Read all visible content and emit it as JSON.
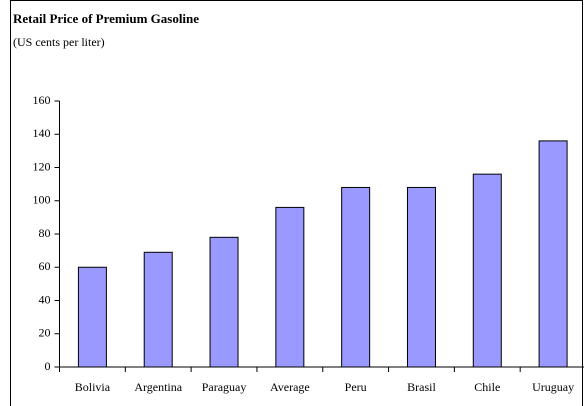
{
  "chart_data": {
    "type": "bar",
    "title": "Retail Price of Premium Gasoline",
    "subtitle": "(US cents per liter)",
    "categories": [
      "Bolivia",
      "Argentina",
      "Paraguay",
      "Average",
      "Peru",
      "Brasil",
      "Chile",
      "Uruguay"
    ],
    "values": [
      60,
      69,
      78,
      96,
      108,
      108,
      116,
      136
    ],
    "color": "#9999ff",
    "ylim": [
      0,
      160
    ],
    "yticks": [
      0,
      20,
      40,
      60,
      80,
      100,
      120,
      140,
      160
    ],
    "grid": false
  }
}
